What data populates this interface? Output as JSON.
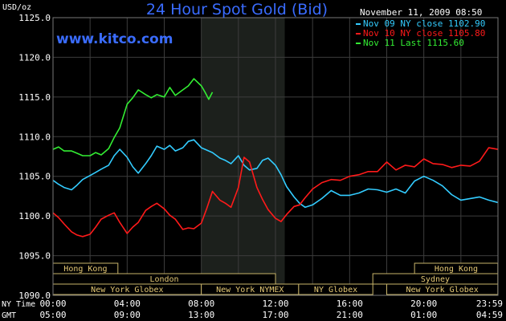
{
  "chart_data": {
    "type": "line",
    "title": "24 Hour Spot Gold (Bid)",
    "watermark": "www.kitco.com",
    "unit_label": "USD/oz",
    "timestamp": "November 11, 2009 08:50",
    "ylim": [
      1090,
      1125
    ],
    "y_ticks": [
      "1125.0",
      "1120.0",
      "1115.0",
      "1110.0",
      "1105.0",
      "1100.0",
      "1095.0",
      "1090.0"
    ],
    "x_axis_rows": [
      {
        "label": "NY Time",
        "ticks": [
          "00:00",
          "04:00",
          "08:00",
          "12:00",
          "16:00",
          "20:00",
          "23:59"
        ]
      },
      {
        "label": "GMT",
        "ticks": [
          "05:00",
          "09:00",
          "13:00",
          "17:00",
          "21:00",
          "01:00",
          "04:59"
        ]
      }
    ],
    "grid": true,
    "legend_position": "top-right",
    "shaded_period_hours": [
      8,
      12.5
    ],
    "sessions": [
      {
        "name": "Hong Kong",
        "row": 0,
        "start_h": 0,
        "end_h": 3.5
      },
      {
        "name": "Hong Kong",
        "row": 0,
        "start_h": 19.5,
        "end_h": 23.99
      },
      {
        "name": "London",
        "row": 1,
        "start_h": 0,
        "end_h": 12
      },
      {
        "name": "Sydney",
        "row": 1,
        "start_h": 17.25,
        "end_h": 23.99
      },
      {
        "name": "New York Globex",
        "row": 2,
        "start_h": 0,
        "end_h": 8
      },
      {
        "name": "New York NYMEX",
        "row": 2,
        "start_h": 8,
        "end_h": 13.25
      },
      {
        "name": "NY Globex",
        "row": 2,
        "start_h": 13.25,
        "end_h": 17.25
      },
      {
        "name": "New York Globex",
        "row": 2,
        "start_h": 18,
        "end_h": 23.99
      }
    ],
    "series": [
      {
        "name": "Nov 09 NY close 1102.90",
        "color": "#33ccff",
        "x": [
          0,
          0.3,
          0.6,
          1,
          1.3,
          1.6,
          2,
          2.3,
          2.6,
          3,
          3.3,
          3.6,
          4,
          4.3,
          4.6,
          5,
          5.3,
          5.6,
          6,
          6.3,
          6.6,
          7,
          7.3,
          7.6,
          8,
          8.3,
          8.6,
          9,
          9.3,
          9.6,
          10,
          10.3,
          10.6,
          11,
          11.3,
          11.6,
          12,
          12.3,
          12.6,
          13,
          13.3,
          13.6,
          14,
          14.5,
          15,
          15.5,
          16,
          16.5,
          17,
          17.5,
          18,
          18.5,
          19,
          19.5,
          20,
          20.5,
          21,
          21.5,
          22,
          22.5,
          23,
          23.5,
          23.99
        ],
        "values": [
          1104.5,
          1104.0,
          1103.6,
          1103.3,
          1103.9,
          1104.6,
          1105.1,
          1105.5,
          1105.9,
          1106.4,
          1107.6,
          1108.4,
          1107.4,
          1106.2,
          1105.4,
          1106.6,
          1107.6,
          1108.8,
          1108.4,
          1108.9,
          1108.2,
          1108.6,
          1109.4,
          1109.6,
          1108.6,
          1108.3,
          1108.0,
          1107.3,
          1107.0,
          1106.6,
          1107.6,
          1106.4,
          1105.8,
          1106.0,
          1107.0,
          1107.3,
          1106.4,
          1105.2,
          1103.7,
          1102.4,
          1101.6,
          1101.1,
          1101.4,
          1102.2,
          1103.2,
          1102.6,
          1102.6,
          1102.9,
          1103.4,
          1103.3,
          1103.0,
          1103.4,
          1102.9,
          1104.4,
          1105.0,
          1104.5,
          1103.8,
          1102.7,
          1102.0,
          1102.2,
          1102.4,
          1102.0,
          1101.7
        ]
      },
      {
        "name": "Nov 10 NY close 1105.80",
        "color": "#ff1a1a",
        "x": [
          0,
          0.3,
          0.6,
          1,
          1.3,
          1.6,
          2,
          2.3,
          2.6,
          3,
          3.3,
          3.6,
          4,
          4.3,
          4.6,
          5,
          5.3,
          5.6,
          6,
          6.3,
          6.6,
          7,
          7.3,
          7.6,
          8,
          8.3,
          8.6,
          9,
          9.3,
          9.6,
          10,
          10.3,
          10.6,
          11,
          11.3,
          11.6,
          12,
          12.3,
          12.6,
          13,
          13.3,
          13.6,
          14,
          14.5,
          15,
          15.5,
          16,
          16.5,
          17,
          17.5,
          18,
          18.5,
          19,
          19.5,
          20,
          20.5,
          21,
          21.5,
          22,
          22.5,
          23,
          23.5,
          23.99
        ],
        "values": [
          1100.4,
          1099.8,
          1099.0,
          1098.0,
          1097.6,
          1097.4,
          1097.7,
          1098.6,
          1099.6,
          1100.1,
          1100.4,
          1099.2,
          1097.8,
          1098.6,
          1099.2,
          1100.7,
          1101.2,
          1101.6,
          1100.9,
          1100.1,
          1099.6,
          1098.3,
          1098.5,
          1098.4,
          1099.1,
          1101.0,
          1103.1,
          1102.0,
          1101.6,
          1101.1,
          1103.6,
          1107.4,
          1106.8,
          1103.6,
          1102.1,
          1100.8,
          1099.7,
          1099.3,
          1100.2,
          1101.2,
          1101.4,
          1102.3,
          1103.4,
          1104.2,
          1104.6,
          1104.5,
          1105.0,
          1105.2,
          1105.6,
          1105.6,
          1106.8,
          1105.8,
          1106.4,
          1106.2,
          1107.2,
          1106.6,
          1106.5,
          1106.1,
          1106.4,
          1106.3,
          1106.9,
          1108.6,
          1108.4
        ]
      },
      {
        "name": "Nov 11 Last 1115.60",
        "color": "#33ee33",
        "x": [
          0,
          0.3,
          0.6,
          1,
          1.3,
          1.6,
          2,
          2.3,
          2.6,
          3,
          3.3,
          3.6,
          4,
          4.3,
          4.6,
          5,
          5.3,
          5.6,
          6,
          6.3,
          6.6,
          7,
          7.3,
          7.6,
          8,
          8.2,
          8.4,
          8.6
        ],
        "values": [
          1108.4,
          1108.7,
          1108.2,
          1108.2,
          1107.9,
          1107.6,
          1107.6,
          1108.0,
          1107.7,
          1108.5,
          1109.9,
          1111.1,
          1114.1,
          1114.9,
          1115.9,
          1115.3,
          1114.9,
          1115.3,
          1115.0,
          1116.2,
          1115.2,
          1115.9,
          1116.4,
          1117.3,
          1116.4,
          1115.6,
          1114.7,
          1115.6
        ]
      }
    ]
  }
}
